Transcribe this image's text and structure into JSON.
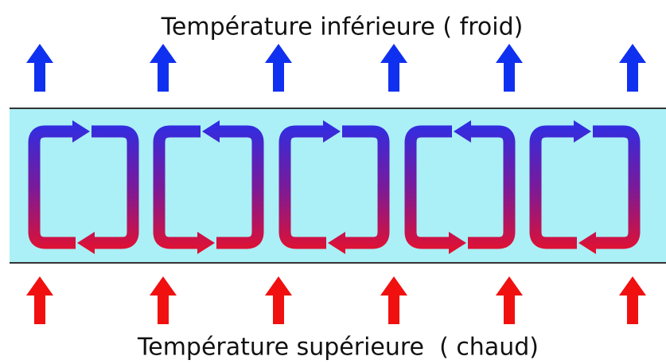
{
  "top_label": "Température inférieure ( froid)",
  "bottom_label": "Température supérieure  ( chaud)"
}
